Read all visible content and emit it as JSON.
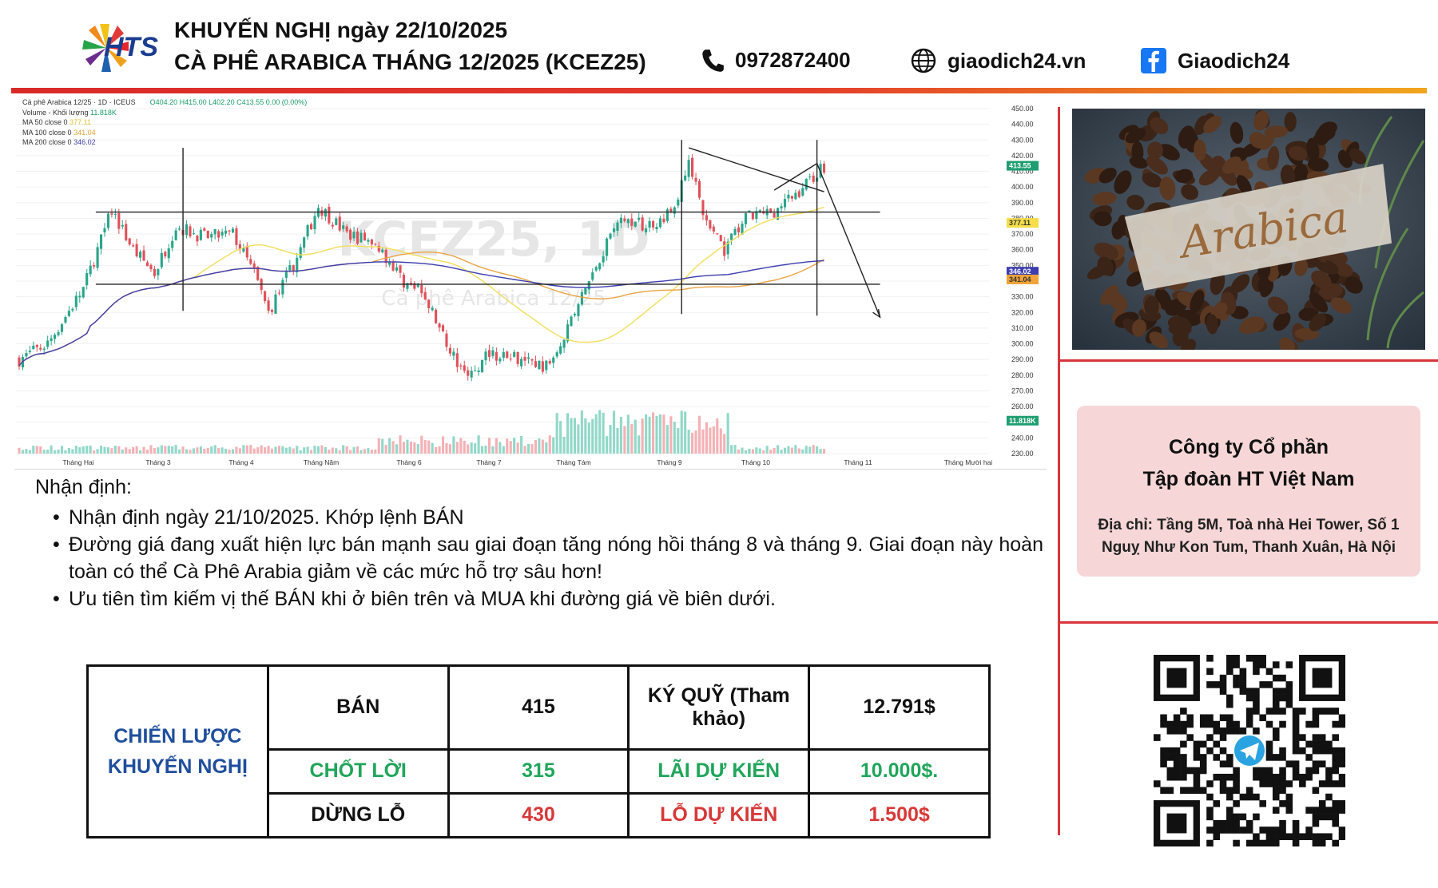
{
  "header": {
    "brand": "HTS",
    "title_line1": "KHUYẾN NGHỊ ngày 22/10/2025",
    "title_line2": "CÀ PHÊ ARABICA THÁNG 12/2025 (KCEZ25)",
    "phone": "0972872400",
    "website": "giaodich24.vn",
    "facebook": "Giaodich24",
    "icons": [
      "phone-icon",
      "globe-icon",
      "facebook-icon"
    ]
  },
  "chart_info": {
    "symbol_line": "Cà phê Arabica 12/25 · 1D · ICEUS",
    "ohlc": "O404.20 H415.00 L402.20 C413.55 0.00 (0.00%)",
    "volume_label": "Volume - Khối lượng",
    "volume_value": "11.818K",
    "ma50_label": "MA 50 close 0",
    "ma50_value": "377.11",
    "ma100_label": "MA 100 close 0",
    "ma100_value": "341.04",
    "ma200_label": "MA 200 close 0",
    "ma200_value": "346.02",
    "watermark_1": "KCEZ25, 1D",
    "watermark_2": "Cà phê Arabica 12/25"
  },
  "chart_data": {
    "type": "candlestick",
    "title": "Cà phê Arabica 12/25 · 1D · ICEUS",
    "y_ticks": [
      450,
      440,
      430,
      420,
      410,
      400,
      390,
      380,
      370,
      360,
      350,
      340,
      330,
      320,
      310,
      300,
      290,
      280,
      270,
      260,
      250,
      240,
      230
    ],
    "ylim": [
      230,
      450
    ],
    "x_ticks": [
      "Tháng Hai",
      "Tháng 3",
      "Tháng 4",
      "Tháng Năm",
      "Tháng 6",
      "Tháng 7",
      "Tháng Tám",
      "Tháng 9",
      "Tháng 10",
      "Tháng 11",
      "Tháng Mười hai"
    ],
    "price_anchors": [
      {
        "t": 0,
        "p": 290
      },
      {
        "t": 8,
        "p": 300
      },
      {
        "t": 18,
        "p": 335
      },
      {
        "t": 26,
        "p": 385
      },
      {
        "t": 32,
        "p": 360
      },
      {
        "t": 38,
        "p": 345
      },
      {
        "t": 44,
        "p": 375
      },
      {
        "t": 52,
        "p": 368
      },
      {
        "t": 60,
        "p": 370
      },
      {
        "t": 66,
        "p": 345
      },
      {
        "t": 70,
        "p": 320
      },
      {
        "t": 78,
        "p": 355
      },
      {
        "t": 84,
        "p": 388
      },
      {
        "t": 92,
        "p": 370
      },
      {
        "t": 100,
        "p": 365
      },
      {
        "t": 108,
        "p": 340
      },
      {
        "t": 114,
        "p": 330
      },
      {
        "t": 120,
        "p": 300
      },
      {
        "t": 126,
        "p": 278
      },
      {
        "t": 132,
        "p": 295
      },
      {
        "t": 140,
        "p": 290
      },
      {
        "t": 148,
        "p": 285
      },
      {
        "t": 156,
        "p": 320
      },
      {
        "t": 162,
        "p": 350
      },
      {
        "t": 168,
        "p": 380
      },
      {
        "t": 176,
        "p": 375
      },
      {
        "t": 184,
        "p": 385
      },
      {
        "t": 188,
        "p": 418
      },
      {
        "t": 192,
        "p": 380
      },
      {
        "t": 198,
        "p": 360
      },
      {
        "t": 204,
        "p": 380
      },
      {
        "t": 212,
        "p": 385
      },
      {
        "t": 218,
        "p": 395
      },
      {
        "t": 222,
        "p": 405
      },
      {
        "t": 226,
        "p": 413.55
      }
    ],
    "last_price": 413.55,
    "ma50_last": 377.11,
    "ma100_last": 341.04,
    "ma200_last": 346.02,
    "last_volume": "11.818K",
    "annotations": {
      "resistance_level": 384,
      "support_level": 338,
      "projected_target": 317
    }
  },
  "right_panel": {
    "photo_label": "Arabica",
    "company_line1": "Công ty Cổ phần",
    "company_line2": "Tập đoàn HT Việt Nam",
    "address_line1": "Địa chỉ: Tầng 5M, Toà nhà Hei Tower, Số 1",
    "address_line2": "Nguỵ Như Kon Tum, Thanh Xuân, Hà Nội"
  },
  "analysis": {
    "heading": "Nhận định:",
    "bullets": [
      "Nhận định ngày 21/10/2025. Khớp lệnh BÁN",
      "Đường giá đang xuất hiện lực bán mạnh sau giai đoạn tăng nóng hồi tháng 8 và tháng 9. Giai đoạn này hoàn toàn có thể Cà Phê Arabia giảm về các mức hỗ trợ sâu hơn!",
      "Ưu tiên tìm kiếm vị thế BÁN khi ở biên trên và MUA khi đường giá về biên dưới."
    ]
  },
  "strategy": {
    "label": "CHIẾN LƯỢC KHUYẾN NGHỊ",
    "row1": {
      "action": "BÁN",
      "price": "415",
      "key": "KÝ QUỸ (Tham khảo)",
      "value": "12.791$"
    },
    "row2": {
      "action": "CHỐT LỜI",
      "price": "315",
      "key": "LÃI DỰ KIẾN",
      "value": "10.000$."
    },
    "row3": {
      "action": "DỪNG LỖ",
      "price": "430",
      "key": "LỖ DỰ KIẾN",
      "value": "1.500$"
    }
  },
  "colors": {
    "bull": "#2aa58a",
    "bear": "#e0515a",
    "red_accent": "#d9343b",
    "blue_text": "#1f4e9c",
    "green_text": "#20a55a"
  }
}
